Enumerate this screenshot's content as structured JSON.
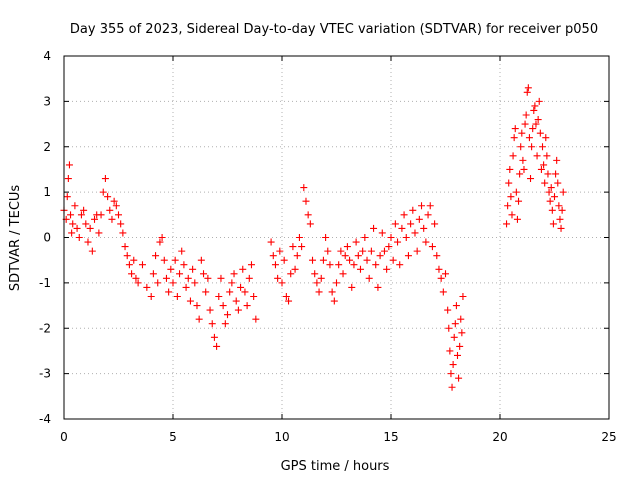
{
  "chart_data": {
    "type": "scatter",
    "title": "Day 355 of 2023, Sidereal Day-to-day VTEC variation (SDTVAR) for receiver p050",
    "xlabel": "GPS time / hours",
    "ylabel": "SDTVAR / TECUs",
    "xlim": [
      0,
      25
    ],
    "ylim": [
      -4,
      4
    ],
    "xticks": [
      0,
      5,
      10,
      15,
      20,
      25
    ],
    "xtick_labels": [
      "0",
      "5",
      "10",
      "15",
      "20",
      "25"
    ],
    "yticks": [
      -4,
      -3,
      -2,
      -1,
      0,
      1,
      2,
      3,
      4
    ],
    "ytick_labels": [
      "-4",
      "-3",
      "-2",
      "-1",
      "0",
      "1",
      "2",
      "3",
      "4"
    ],
    "grid": true,
    "marker": "+",
    "color": "#ff0000",
    "series": [
      {
        "name": "p050",
        "points": [
          [
            0.0,
            0.6
          ],
          [
            0.1,
            0.4
          ],
          [
            0.15,
            0.9
          ],
          [
            0.2,
            1.3
          ],
          [
            0.25,
            1.6
          ],
          [
            0.3,
            0.5
          ],
          [
            0.35,
            0.1
          ],
          [
            0.4,
            0.3
          ],
          [
            0.5,
            0.7
          ],
          [
            0.6,
            0.2
          ],
          [
            0.7,
            0.0
          ],
          [
            0.8,
            0.5
          ],
          [
            0.9,
            0.6
          ],
          [
            1.0,
            0.3
          ],
          [
            1.1,
            -0.1
          ],
          [
            1.2,
            0.2
          ],
          [
            1.3,
            -0.3
          ],
          [
            1.4,
            0.4
          ],
          [
            1.5,
            0.5
          ],
          [
            1.6,
            0.1
          ],
          [
            1.7,
            0.5
          ],
          [
            1.8,
            1.0
          ],
          [
            1.9,
            1.3
          ],
          [
            2.0,
            0.9
          ],
          [
            2.1,
            0.6
          ],
          [
            2.2,
            0.4
          ],
          [
            2.3,
            0.8
          ],
          [
            2.4,
            0.7
          ],
          [
            2.5,
            0.5
          ],
          [
            2.6,
            0.3
          ],
          [
            2.7,
            0.1
          ],
          [
            2.8,
            -0.2
          ],
          [
            2.9,
            -0.4
          ],
          [
            3.0,
            -0.6
          ],
          [
            3.1,
            -0.8
          ],
          [
            3.2,
            -0.5
          ],
          [
            3.3,
            -0.9
          ],
          [
            3.4,
            -1.0
          ],
          [
            3.6,
            -0.6
          ],
          [
            3.8,
            -1.1
          ],
          [
            4.0,
            -1.3
          ],
          [
            4.1,
            -0.8
          ],
          [
            4.2,
            -0.4
          ],
          [
            4.3,
            -1.0
          ],
          [
            4.4,
            -0.1
          ],
          [
            4.5,
            0.0
          ],
          [
            4.6,
            -0.5
          ],
          [
            4.7,
            -0.9
          ],
          [
            4.8,
            -1.2
          ],
          [
            4.9,
            -0.7
          ],
          [
            5.0,
            -1.0
          ],
          [
            5.1,
            -0.5
          ],
          [
            5.2,
            -1.3
          ],
          [
            5.3,
            -0.8
          ],
          [
            5.4,
            -0.3
          ],
          [
            5.5,
            -0.6
          ],
          [
            5.6,
            -1.1
          ],
          [
            5.7,
            -0.9
          ],
          [
            5.8,
            -1.4
          ],
          [
            5.9,
            -0.7
          ],
          [
            6.0,
            -1.0
          ],
          [
            6.1,
            -1.5
          ],
          [
            6.2,
            -1.8
          ],
          [
            6.3,
            -0.5
          ],
          [
            6.4,
            -0.8
          ],
          [
            6.5,
            -1.2
          ],
          [
            6.6,
            -0.9
          ],
          [
            6.7,
            -1.6
          ],
          [
            6.8,
            -1.9
          ],
          [
            6.9,
            -2.2
          ],
          [
            7.0,
            -2.4
          ],
          [
            7.1,
            -1.3
          ],
          [
            7.2,
            -0.9
          ],
          [
            7.3,
            -1.5
          ],
          [
            7.4,
            -1.9
          ],
          [
            7.5,
            -1.7
          ],
          [
            7.6,
            -1.2
          ],
          [
            7.7,
            -1.0
          ],
          [
            7.8,
            -0.8
          ],
          [
            7.9,
            -1.4
          ],
          [
            8.0,
            -1.6
          ],
          [
            8.1,
            -1.1
          ],
          [
            8.2,
            -0.7
          ],
          [
            8.3,
            -1.2
          ],
          [
            8.4,
            -1.5
          ],
          [
            8.5,
            -0.9
          ],
          [
            8.6,
            -0.6
          ],
          [
            8.7,
            -1.3
          ],
          [
            8.8,
            -1.8
          ],
          [
            9.5,
            -0.1
          ],
          [
            9.6,
            -0.4
          ],
          [
            9.7,
            -0.6
          ],
          [
            9.8,
            -0.9
          ],
          [
            9.9,
            -0.3
          ],
          [
            10.0,
            -1.0
          ],
          [
            10.1,
            -0.5
          ],
          [
            10.2,
            -1.3
          ],
          [
            10.3,
            -1.4
          ],
          [
            10.4,
            -0.8
          ],
          [
            10.5,
            -0.2
          ],
          [
            10.6,
            -0.7
          ],
          [
            10.7,
            -0.4
          ],
          [
            10.8,
            0.0
          ],
          [
            10.9,
            -0.2
          ],
          [
            11.0,
            1.1
          ],
          [
            11.1,
            0.8
          ],
          [
            11.2,
            0.5
          ],
          [
            11.3,
            0.3
          ],
          [
            11.4,
            -0.5
          ],
          [
            11.5,
            -0.8
          ],
          [
            11.6,
            -1.0
          ],
          [
            11.7,
            -1.2
          ],
          [
            11.8,
            -0.9
          ],
          [
            11.9,
            -0.5
          ],
          [
            12.0,
            0.0
          ],
          [
            12.1,
            -0.3
          ],
          [
            12.2,
            -0.6
          ],
          [
            12.3,
            -1.2
          ],
          [
            12.4,
            -1.4
          ],
          [
            12.5,
            -1.0
          ],
          [
            12.6,
            -0.6
          ],
          [
            12.7,
            -0.3
          ],
          [
            12.8,
            -0.8
          ],
          [
            12.9,
            -0.4
          ],
          [
            13.0,
            -0.2
          ],
          [
            13.1,
            -0.5
          ],
          [
            13.2,
            -1.1
          ],
          [
            13.3,
            -0.6
          ],
          [
            13.4,
            -0.1
          ],
          [
            13.5,
            -0.4
          ],
          [
            13.6,
            -0.7
          ],
          [
            13.7,
            -0.3
          ],
          [
            13.8,
            0.0
          ],
          [
            13.9,
            -0.5
          ],
          [
            14.0,
            -0.9
          ],
          [
            14.1,
            -0.3
          ],
          [
            14.2,
            0.2
          ],
          [
            14.3,
            -0.6
          ],
          [
            14.4,
            -1.1
          ],
          [
            14.5,
            -0.4
          ],
          [
            14.6,
            0.1
          ],
          [
            14.7,
            -0.3
          ],
          [
            14.8,
            -0.7
          ],
          [
            14.9,
            -0.2
          ],
          [
            15.0,
            0.0
          ],
          [
            15.1,
            -0.5
          ],
          [
            15.2,
            0.3
          ],
          [
            15.3,
            -0.1
          ],
          [
            15.4,
            -0.6
          ],
          [
            15.5,
            0.2
          ],
          [
            15.6,
            0.5
          ],
          [
            15.7,
            0.0
          ],
          [
            15.8,
            -0.4
          ],
          [
            15.9,
            0.3
          ],
          [
            16.0,
            0.6
          ],
          [
            16.1,
            0.1
          ],
          [
            16.2,
            -0.3
          ],
          [
            16.3,
            0.4
          ],
          [
            16.4,
            0.7
          ],
          [
            16.5,
            0.2
          ],
          [
            16.6,
            -0.1
          ],
          [
            16.7,
            0.5
          ],
          [
            16.8,
            0.7
          ],
          [
            16.9,
            -0.2
          ],
          [
            17.0,
            0.3
          ],
          [
            17.1,
            -0.4
          ],
          [
            17.2,
            -0.7
          ],
          [
            17.3,
            -0.9
          ],
          [
            17.4,
            -1.2
          ],
          [
            17.5,
            -0.8
          ],
          [
            17.6,
            -1.6
          ],
          [
            17.65,
            -2.0
          ],
          [
            17.7,
            -2.5
          ],
          [
            17.75,
            -3.0
          ],
          [
            17.8,
            -3.3
          ],
          [
            17.85,
            -2.8
          ],
          [
            17.9,
            -2.2
          ],
          [
            17.95,
            -1.9
          ],
          [
            18.0,
            -1.5
          ],
          [
            18.05,
            -2.6
          ],
          [
            18.1,
            -3.1
          ],
          [
            18.15,
            -2.4
          ],
          [
            18.2,
            -1.8
          ],
          [
            18.25,
            -2.1
          ],
          [
            18.3,
            -1.3
          ],
          [
            20.3,
            0.3
          ],
          [
            20.35,
            0.7
          ],
          [
            20.4,
            1.2
          ],
          [
            20.45,
            1.5
          ],
          [
            20.5,
            0.9
          ],
          [
            20.55,
            0.5
          ],
          [
            20.6,
            1.8
          ],
          [
            20.65,
            2.2
          ],
          [
            20.7,
            2.4
          ],
          [
            20.75,
            1.0
          ],
          [
            20.8,
            0.4
          ],
          [
            20.85,
            0.8
          ],
          [
            20.9,
            1.4
          ],
          [
            20.95,
            2.0
          ],
          [
            21.0,
            2.3
          ],
          [
            21.05,
            1.7
          ],
          [
            21.1,
            1.5
          ],
          [
            21.15,
            2.5
          ],
          [
            21.2,
            2.7
          ],
          [
            21.25,
            3.2
          ],
          [
            21.3,
            3.3
          ],
          [
            21.35,
            2.2
          ],
          [
            21.4,
            1.3
          ],
          [
            21.45,
            2.0
          ],
          [
            21.5,
            2.4
          ],
          [
            21.55,
            2.8
          ],
          [
            21.6,
            2.9
          ],
          [
            21.65,
            2.5
          ],
          [
            21.7,
            1.8
          ],
          [
            21.75,
            2.6
          ],
          [
            21.8,
            3.0
          ],
          [
            21.85,
            2.3
          ],
          [
            21.9,
            1.5
          ],
          [
            21.95,
            2.0
          ],
          [
            22.0,
            1.6
          ],
          [
            22.05,
            1.2
          ],
          [
            22.1,
            2.2
          ],
          [
            22.15,
            1.8
          ],
          [
            22.2,
            1.4
          ],
          [
            22.25,
            1.0
          ],
          [
            22.3,
            0.8
          ],
          [
            22.35,
            1.1
          ],
          [
            22.4,
            0.6
          ],
          [
            22.45,
            0.3
          ],
          [
            22.5,
            0.9
          ],
          [
            22.55,
            1.4
          ],
          [
            22.6,
            1.7
          ],
          [
            22.65,
            1.2
          ],
          [
            22.7,
            0.7
          ],
          [
            22.75,
            0.4
          ],
          [
            22.8,
            0.2
          ],
          [
            22.85,
            0.6
          ],
          [
            22.9,
            1.0
          ]
        ]
      }
    ]
  }
}
